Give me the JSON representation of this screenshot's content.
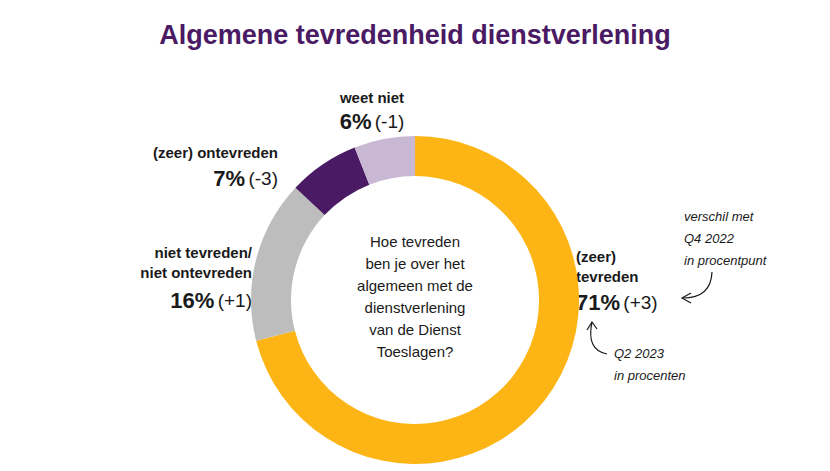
{
  "chart_data": {
    "type": "donut",
    "title": "Algemene tevredenheid dienstverlening",
    "center_text": "Hoe tevreden\nben je over het\nalgemeen met de\ndienstverlening\nvan de Dienst\nToeslagen?",
    "categories": [
      "(zeer)\ntevreden",
      "niet tevreden/\nniet ontevreden",
      "(zeer) ontevreden",
      "weet niet"
    ],
    "values": [
      71,
      16,
      7,
      6
    ],
    "value_labels": [
      "71%",
      "16%",
      "7%",
      "6%"
    ],
    "changes": [
      3,
      1,
      -3,
      -1
    ],
    "change_labels": [
      "(+3)",
      "(+1)",
      "(-3)",
      "(-1)"
    ],
    "colors": [
      "#fdb515",
      "#bdbdbd",
      "#4a1a64",
      "#c9b8d4"
    ],
    "annotations": [
      "verschil met\nQ4 2022\nin procentpunt",
      "Q2 2023\nin procenten"
    ],
    "data_labels": true,
    "legend": false
  }
}
